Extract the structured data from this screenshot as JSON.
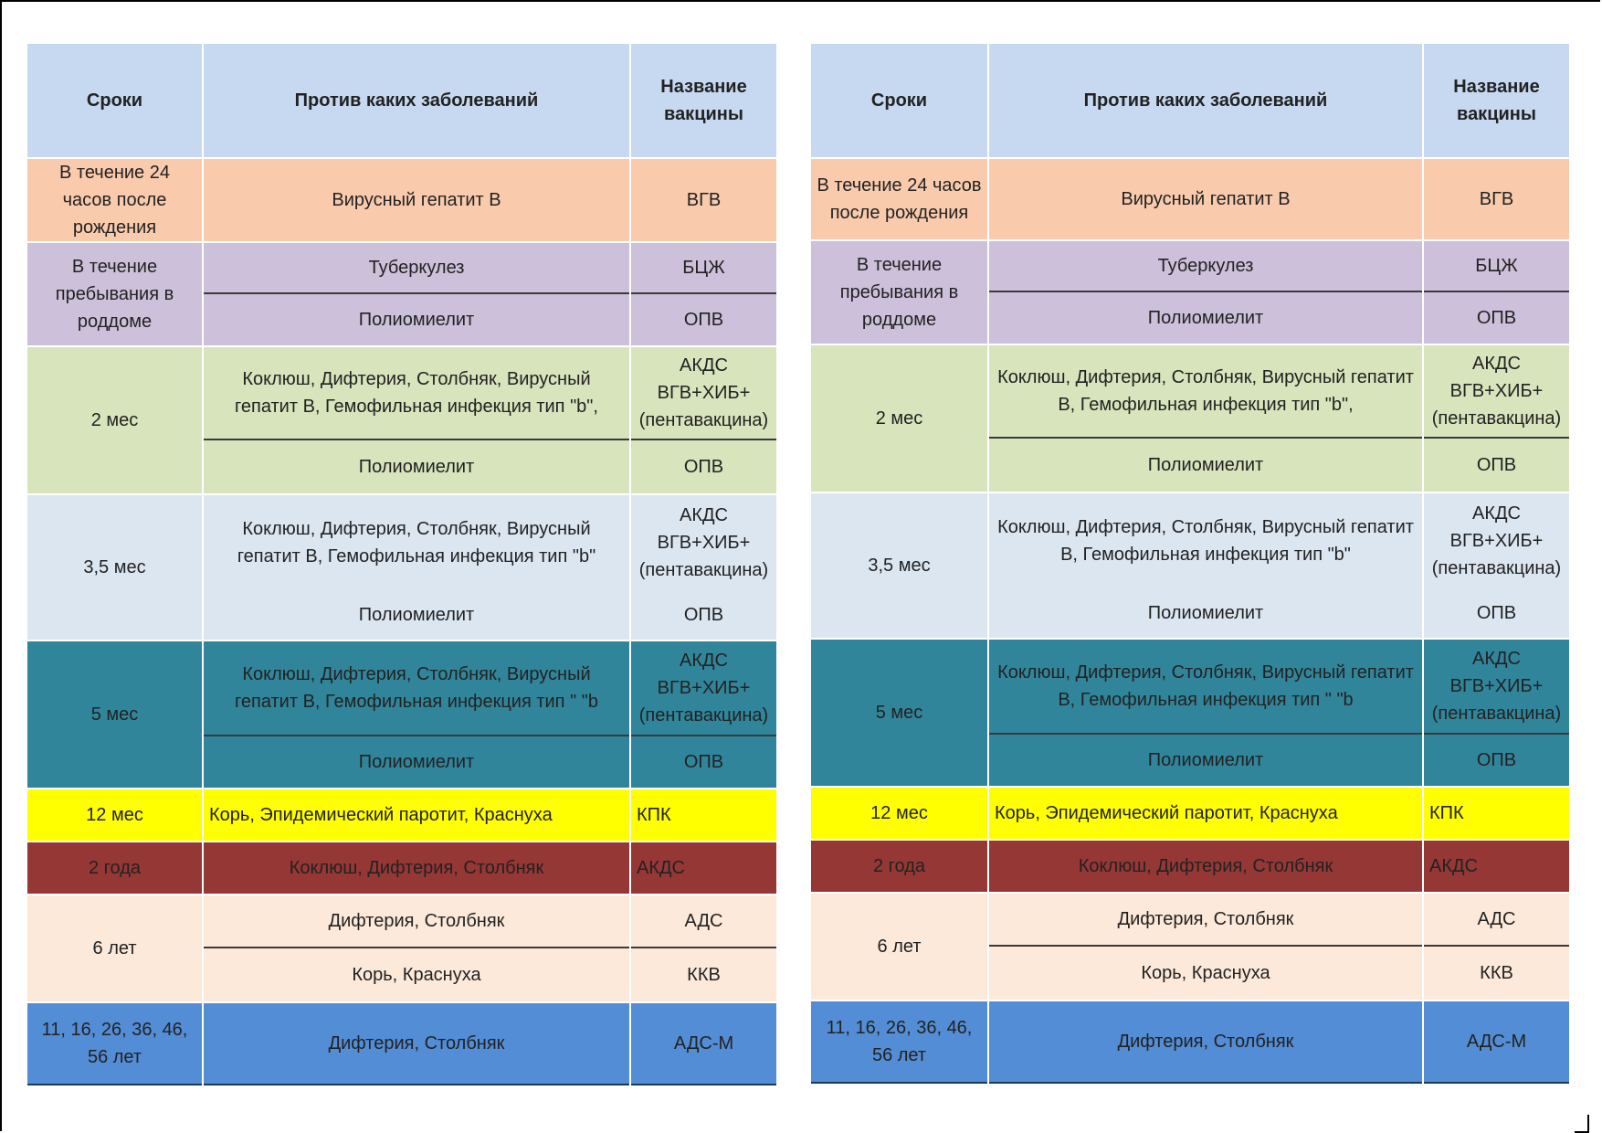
{
  "headers": {
    "col1": "Сроки",
    "col2": "Против каких заболеваний",
    "col3": "Название вакцины"
  },
  "rows": {
    "r1": {
      "term": "В течение 24 часов после рождения",
      "disease": "Вирусный гепатит В",
      "vaccine": "ВГВ"
    },
    "r2": {
      "term": "В течение пребывания в роддоме",
      "disease_a": "Туберкулез",
      "vaccine_a": "БЦЖ",
      "disease_b": "Полиомиелит",
      "vaccine_b": "ОПВ"
    },
    "r3": {
      "term": "2 мес",
      "disease_a": "Коклюш, Дифтерия, Столбняк, Вирусный гепатит В, Гемофильная инфекция тип \"b\",",
      "vaccine_a": "АКДС ВГВ+ХИБ+ (пентавакцина)",
      "disease_b": "Полиомиелит",
      "vaccine_b": "ОПВ"
    },
    "r4": {
      "term": "3,5 мес",
      "disease_a": "Коклюш, Дифтерия, Столбняк, Вирусный гепатит В, Гемофильная инфекция тип \"b\"",
      "vaccine_a": "АКДС ВГВ+ХИБ+ (пентавакцина)",
      "disease_b": "Полиомиелит",
      "vaccine_b": "ОПВ"
    },
    "r5": {
      "term": "5 мес",
      "disease_a": "Коклюш, Дифтерия, Столбняк, Вирусный гепатит В, Гемофильная инфекция тип \" \"b",
      "vaccine_a": "АКДС ВГВ+ХИБ+ (пентавакцина)",
      "disease_b": "Полиомиелит",
      "vaccine_b": "ОПВ"
    },
    "r6": {
      "term": "12 мес",
      "disease": "Корь, Эпидемический паротит, Краснуха",
      "vaccine": "КПК"
    },
    "r7": {
      "term": "2 года",
      "disease": "Коклюш, Дифтерия, Столбняк",
      "vaccine": "АКДС"
    },
    "r8": {
      "term": "6 лет",
      "disease_a": "Дифтерия, Столбняк",
      "vaccine_a": "АДС",
      "disease_b": "Корь, Краснуха",
      "vaccine_b": "ККВ"
    },
    "r9": {
      "term": "11, 16, 26, 36, 46, 56 лет",
      "disease": "Дифтерия, Столбняк",
      "vaccine": "АДС-М"
    }
  }
}
